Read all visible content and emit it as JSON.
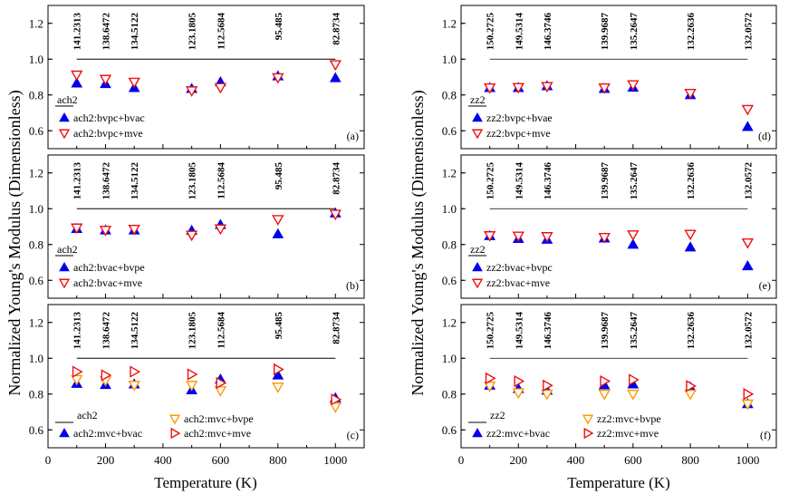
{
  "figure": {
    "ylabel_left": "Normalized Young's Modulus (Dimensionless)",
    "ylabel_right": "Normalized Young's Modulus (Dimensionless)",
    "xlabel_left": "Temperature (K)",
    "xlabel_right": "Temperature (K)"
  },
  "colors": {
    "blue": "#0000ee",
    "red": "#ee1111",
    "orange": "#ff9900",
    "line": "#000000"
  },
  "chart_data": [
    {
      "type": "scatter",
      "panel_label": "(a)",
      "xlim": [
        0,
        1100
      ],
      "ylim": [
        0.5,
        1.3
      ],
      "x_ticks": [
        0,
        200,
        400,
        600,
        800,
        1000
      ],
      "y_ticks": [
        0.6,
        0.8,
        1.0,
        1.2
      ],
      "x": [
        100,
        200,
        300,
        500,
        600,
        800,
        1000
      ],
      "value_labels": [
        "141.2313",
        "138.6472",
        "134.5122",
        "123.1805",
        "112.5684",
        "95.485",
        "82.8734"
      ],
      "reference": {
        "name": "ach2",
        "y": 1.0,
        "x_range": [
          100,
          1000
        ]
      },
      "series": [
        {
          "name": "ach2:bvpc+bvac",
          "marker": "triangle-up",
          "color": "blue",
          "values": [
            0.865,
            0.862,
            0.84,
            0.835,
            0.872,
            0.905,
            0.895
          ]
        },
        {
          "name": "ach2:bvpc+mve",
          "marker": "triangle-down",
          "color": "red",
          "values": [
            0.912,
            0.888,
            0.872,
            0.824,
            0.842,
            0.897,
            0.97
          ]
        }
      ],
      "legend": "bottom-left"
    },
    {
      "type": "scatter",
      "panel_label": "(b)",
      "xlim": [
        0,
        1100
      ],
      "ylim": [
        0.5,
        1.3
      ],
      "x_ticks": [
        0,
        200,
        400,
        600,
        800,
        1000
      ],
      "y_ticks": [
        0.6,
        0.8,
        1.0,
        1.2
      ],
      "x": [
        100,
        200,
        300,
        500,
        600,
        800,
        1000
      ],
      "value_labels": [
        "141.2313",
        "138.6472",
        "134.5122",
        "123.1805",
        "112.5684",
        "95.485",
        "82.8734"
      ],
      "reference": {
        "name": "ach2",
        "y": 1.0,
        "x_range": [
          100,
          1000
        ]
      },
      "series": [
        {
          "name": "ach2:bvac+bvpe",
          "marker": "triangle-up",
          "color": "blue",
          "values": [
            0.888,
            0.88,
            0.88,
            0.878,
            0.91,
            0.858,
            0.975
          ]
        },
        {
          "name": "ach2:bvac+mve",
          "marker": "triangle-down",
          "color": "red",
          "values": [
            0.893,
            0.88,
            0.886,
            0.853,
            0.888,
            0.94,
            0.97
          ]
        }
      ],
      "legend": "bottom-left"
    },
    {
      "type": "scatter",
      "panel_label": "(c)",
      "xlim": [
        0,
        1100
      ],
      "ylim": [
        0.5,
        1.3
      ],
      "x_ticks": [
        0,
        200,
        400,
        600,
        800,
        1000
      ],
      "y_ticks": [
        0.6,
        0.8,
        1.0,
        1.2
      ],
      "x": [
        100,
        200,
        300,
        500,
        600,
        800,
        1000
      ],
      "value_labels": [
        "141.2313",
        "138.6472",
        "134.5122",
        "123.1805",
        "112.5684",
        "95.485",
        "82.8734"
      ],
      "reference": {
        "name": "ach2",
        "y": 1.0,
        "x_range": [
          100,
          1000
        ]
      },
      "series": [
        {
          "name": "ach2:mvc+bvac",
          "marker": "triangle-up",
          "color": "blue",
          "values": [
            0.858,
            0.852,
            0.855,
            0.822,
            0.882,
            0.905,
            0.778
          ]
        },
        {
          "name": "ach2:mvc+bvpe",
          "marker": "triangle-down",
          "color": "orange",
          "values": [
            0.882,
            0.876,
            0.85,
            0.85,
            0.82,
            0.84,
            0.728
          ]
        },
        {
          "name": "ach2:mvc+mve",
          "marker": "triangle-right",
          "color": "red",
          "values": [
            0.925,
            0.905,
            0.925,
            0.91,
            0.862,
            0.938,
            0.77
          ]
        }
      ],
      "legend": "bottom-left"
    },
    {
      "type": "scatter",
      "panel_label": "(d)",
      "xlim": [
        0,
        1100
      ],
      "ylim": [
        0.5,
        1.3
      ],
      "x_ticks": [
        0,
        200,
        400,
        600,
        800,
        1000
      ],
      "y_ticks": [
        0.6,
        0.8,
        1.0,
        1.2
      ],
      "x": [
        100,
        200,
        300,
        500,
        600,
        800,
        1000
      ],
      "value_labels": [
        "150.2725",
        "149.5314",
        "146.3746",
        "139.9687",
        "135.2647",
        "132.2636",
        "132.0572"
      ],
      "reference": {
        "name": "zz2",
        "y": 1.0,
        "x_range": [
          100,
          1000
        ]
      },
      "series": [
        {
          "name": "zz2:bvpc+bvae",
          "marker": "triangle-up",
          "color": "blue",
          "values": [
            0.84,
            0.84,
            0.85,
            0.835,
            0.842,
            0.8,
            0.622
          ]
        },
        {
          "name": "zz2:bvpc+mve",
          "marker": "triangle-down",
          "color": "red",
          "values": [
            0.84,
            0.842,
            0.848,
            0.84,
            0.858,
            0.81,
            0.72
          ]
        }
      ],
      "legend": "bottom-left"
    },
    {
      "type": "scatter",
      "panel_label": "(e)",
      "xlim": [
        0,
        1100
      ],
      "ylim": [
        0.5,
        1.3
      ],
      "x_ticks": [
        0,
        200,
        400,
        600,
        800,
        1000
      ],
      "y_ticks": [
        0.6,
        0.8,
        1.0,
        1.2
      ],
      "x": [
        100,
        200,
        300,
        500,
        600,
        800,
        1000
      ],
      "value_labels": [
        "150.2725",
        "149.5314",
        "146.3746",
        "139.9687",
        "135.2647",
        "132.2636",
        "132.0572"
      ],
      "reference": {
        "name": "zz2",
        "y": 1.0,
        "x_range": [
          100,
          1000
        ]
      },
      "series": [
        {
          "name": "zz2:bvac+bvpc",
          "marker": "triangle-up",
          "color": "blue",
          "values": [
            0.848,
            0.832,
            0.828,
            0.835,
            0.8,
            0.785,
            0.68
          ]
        },
        {
          "name": "zz2:bvac+mve",
          "marker": "triangle-down",
          "color": "red",
          "values": [
            0.85,
            0.848,
            0.845,
            0.84,
            0.855,
            0.858,
            0.81
          ]
        }
      ],
      "legend": "bottom-left"
    },
    {
      "type": "scatter",
      "panel_label": "(f)",
      "xlim": [
        0,
        1100
      ],
      "ylim": [
        0.5,
        1.3
      ],
      "x_ticks": [
        0,
        200,
        400,
        600,
        800,
        1000
      ],
      "y_ticks": [
        0.6,
        0.8,
        1.0,
        1.2
      ],
      "x": [
        100,
        200,
        300,
        500,
        600,
        800,
        1000
      ],
      "value_labels": [
        "150.2725",
        "149.5314",
        "146.3746",
        "139.9687",
        "135.2647",
        "132.2636",
        "132.0572"
      ],
      "reference": {
        "name": "zz2",
        "y": 1.0,
        "x_range": [
          100,
          1000
        ]
      },
      "series": [
        {
          "name": "zz2:mvc+bvac",
          "marker": "triangle-up",
          "color": "blue",
          "values": [
            0.848,
            0.83,
            0.82,
            0.85,
            0.855,
            0.838,
            0.745
          ]
        },
        {
          "name": "zz2:mvc+bvpe",
          "marker": "triangle-down",
          "color": "orange",
          "values": [
            0.845,
            0.808,
            0.8,
            0.8,
            0.8,
            0.8,
            0.745
          ]
        },
        {
          "name": "zz2:mvc+mve",
          "marker": "triangle-right",
          "color": "red",
          "values": [
            0.888,
            0.872,
            0.848,
            0.872,
            0.88,
            0.845,
            0.8
          ]
        }
      ],
      "legend": "bottom-left"
    }
  ]
}
